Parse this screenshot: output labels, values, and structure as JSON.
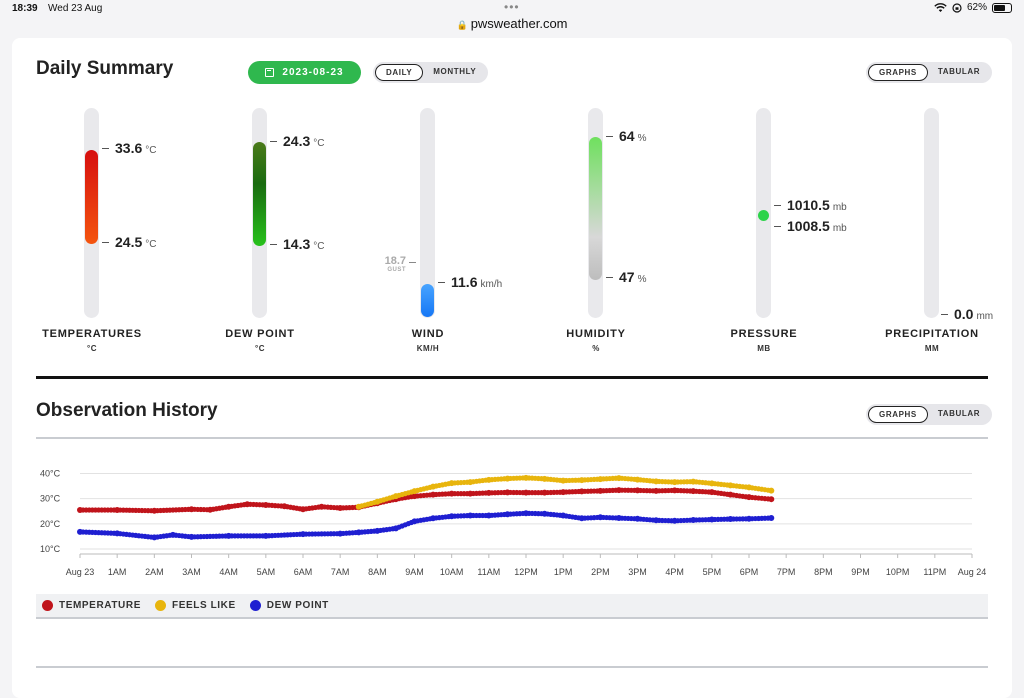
{
  "statusbar": {
    "time": "18:39",
    "date": "Wed 23 Aug",
    "url": "pwsweather.com",
    "battery": "62%"
  },
  "summary": {
    "title": "Daily Summary",
    "date": "2023-08-23",
    "period_toggle": [
      "DAILY",
      "MONTHLY"
    ],
    "period_active": "DAILY",
    "view_toggle": [
      "GRAPHS",
      "TABULAR"
    ],
    "view_active": "GRAPHS",
    "gauges": {
      "temperature": {
        "label": "TEMPERATURES",
        "unit_label": "°C",
        "high": "33.6",
        "low": "24.5",
        "unit": "°C",
        "color_top": "#d60f0f",
        "color_bottom": "#f4550f"
      },
      "dew_point": {
        "label": "DEW POINT",
        "unit_label": "°C",
        "high": "24.3",
        "low": "14.3",
        "unit": "°C",
        "color_top": "#4b7a1a",
        "color_bottom": "#28c21c"
      },
      "wind": {
        "label": "WIND",
        "unit_label": "KM/H",
        "gust": "18.7",
        "gust_label": "GUST",
        "value": "11.6",
        "unit": "km/h",
        "color": "#1677f5"
      },
      "humidity": {
        "label": "HUMIDITY",
        "unit_label": "%",
        "high": "64",
        "low": "47",
        "unit": "%",
        "color_top": "#6fe05e",
        "color_bottom": "#bdbdbd"
      },
      "pressure": {
        "label": "PRESSURE",
        "unit_label": "MB",
        "high": "1010.5",
        "low": "1008.5",
        "unit": "mb",
        "color": "#2dd34a"
      },
      "precipitation": {
        "label": "PRECIPITATION",
        "unit_label": "MM",
        "value": "0.0",
        "unit": "mm"
      }
    }
  },
  "history": {
    "title": "Observation History",
    "view_toggle": [
      "GRAPHS",
      "TABULAR"
    ],
    "view_active": "GRAPHS",
    "legend": [
      {
        "name": "TEMPERATURE",
        "color": "#c0141b"
      },
      {
        "name": "FEELS LIKE",
        "color": "#e8b50d"
      },
      {
        "name": "DEW POINT",
        "color": "#1f1fd1"
      }
    ]
  },
  "chart_data": {
    "type": "scatter",
    "y_ticks": [
      "40°C",
      "30°C",
      "20°C",
      "10°C"
    ],
    "y_values": [
      40,
      30,
      20,
      10
    ],
    "ylim": [
      8,
      43
    ],
    "x_ticks": [
      "Aug 23",
      "1AM",
      "2AM",
      "3AM",
      "4AM",
      "5AM",
      "6AM",
      "7AM",
      "8AM",
      "9AM",
      "10AM",
      "11AM",
      "12PM",
      "1PM",
      "2PM",
      "3PM",
      "4PM",
      "5PM",
      "6PM",
      "7PM",
      "8PM",
      "9PM",
      "10PM",
      "11PM",
      "Aug 24"
    ],
    "x_hours_range": [
      0,
      24
    ],
    "series": [
      {
        "name": "TEMPERATURE",
        "color": "#c0141b",
        "points": [
          [
            0,
            25.5
          ],
          [
            1,
            25.5
          ],
          [
            2,
            25.2
          ],
          [
            3,
            25.8
          ],
          [
            3.5,
            25.6
          ],
          [
            4,
            26.8
          ],
          [
            4.5,
            27.8
          ],
          [
            5,
            27.5
          ],
          [
            5.5,
            27.0
          ],
          [
            6,
            25.8
          ],
          [
            6.5,
            26.8
          ],
          [
            7,
            26.3
          ],
          [
            7.5,
            26.6
          ],
          [
            8,
            28.2
          ],
          [
            8.5,
            29.8
          ],
          [
            9,
            31.0
          ],
          [
            9.5,
            31.6
          ],
          [
            10,
            32.0
          ],
          [
            10.5,
            32.0
          ],
          [
            11,
            32.3
          ],
          [
            11.5,
            32.5
          ],
          [
            12,
            32.4
          ],
          [
            12.5,
            32.4
          ],
          [
            13,
            32.6
          ],
          [
            13.5,
            32.9
          ],
          [
            14,
            33.1
          ],
          [
            14.5,
            33.4
          ],
          [
            15,
            33.3
          ],
          [
            15.5,
            33.1
          ],
          [
            16,
            33.3
          ],
          [
            16.5,
            33.0
          ],
          [
            17,
            32.6
          ],
          [
            17.5,
            31.6
          ],
          [
            18,
            30.6
          ],
          [
            18.6,
            29.8
          ]
        ]
      },
      {
        "name": "FEELS LIKE",
        "color": "#e8b50d",
        "points": [
          [
            7.5,
            26.8
          ],
          [
            8,
            28.8
          ],
          [
            8.5,
            31.0
          ],
          [
            9,
            33.0
          ],
          [
            9.5,
            34.8
          ],
          [
            10,
            36.2
          ],
          [
            10.5,
            36.6
          ],
          [
            11,
            37.5
          ],
          [
            11.5,
            38.0
          ],
          [
            12,
            38.3
          ],
          [
            12.5,
            37.9
          ],
          [
            13,
            37.2
          ],
          [
            13.5,
            37.4
          ],
          [
            14,
            37.8
          ],
          [
            14.5,
            38.2
          ],
          [
            15,
            37.6
          ],
          [
            15.5,
            36.9
          ],
          [
            16,
            36.6
          ],
          [
            16.5,
            36.8
          ],
          [
            17,
            36.1
          ],
          [
            17.5,
            35.3
          ],
          [
            18,
            34.5
          ],
          [
            18.6,
            33.2
          ]
        ]
      },
      {
        "name": "DEW POINT",
        "color": "#1f1fd1",
        "points": [
          [
            0,
            16.8
          ],
          [
            1,
            16.2
          ],
          [
            2,
            14.6
          ],
          [
            2.5,
            15.6
          ],
          [
            3,
            14.8
          ],
          [
            4,
            15.2
          ],
          [
            5,
            15.2
          ],
          [
            6,
            15.9
          ],
          [
            7,
            16.1
          ],
          [
            7.5,
            16.6
          ],
          [
            8,
            17.2
          ],
          [
            8.5,
            18.2
          ],
          [
            9,
            21.0
          ],
          [
            9.5,
            22.2
          ],
          [
            10,
            23.0
          ],
          [
            10.5,
            23.3
          ],
          [
            11,
            23.3
          ],
          [
            11.5,
            23.8
          ],
          [
            12,
            24.2
          ],
          [
            12.5,
            24.0
          ],
          [
            13,
            23.3
          ],
          [
            13.5,
            22.2
          ],
          [
            14,
            22.6
          ],
          [
            14.5,
            22.3
          ],
          [
            15,
            22.0
          ],
          [
            15.5,
            21.4
          ],
          [
            16,
            21.2
          ],
          [
            16.5,
            21.5
          ],
          [
            17,
            21.7
          ],
          [
            17.5,
            21.9
          ],
          [
            18,
            22.0
          ],
          [
            18.6,
            22.3
          ]
        ]
      }
    ]
  }
}
